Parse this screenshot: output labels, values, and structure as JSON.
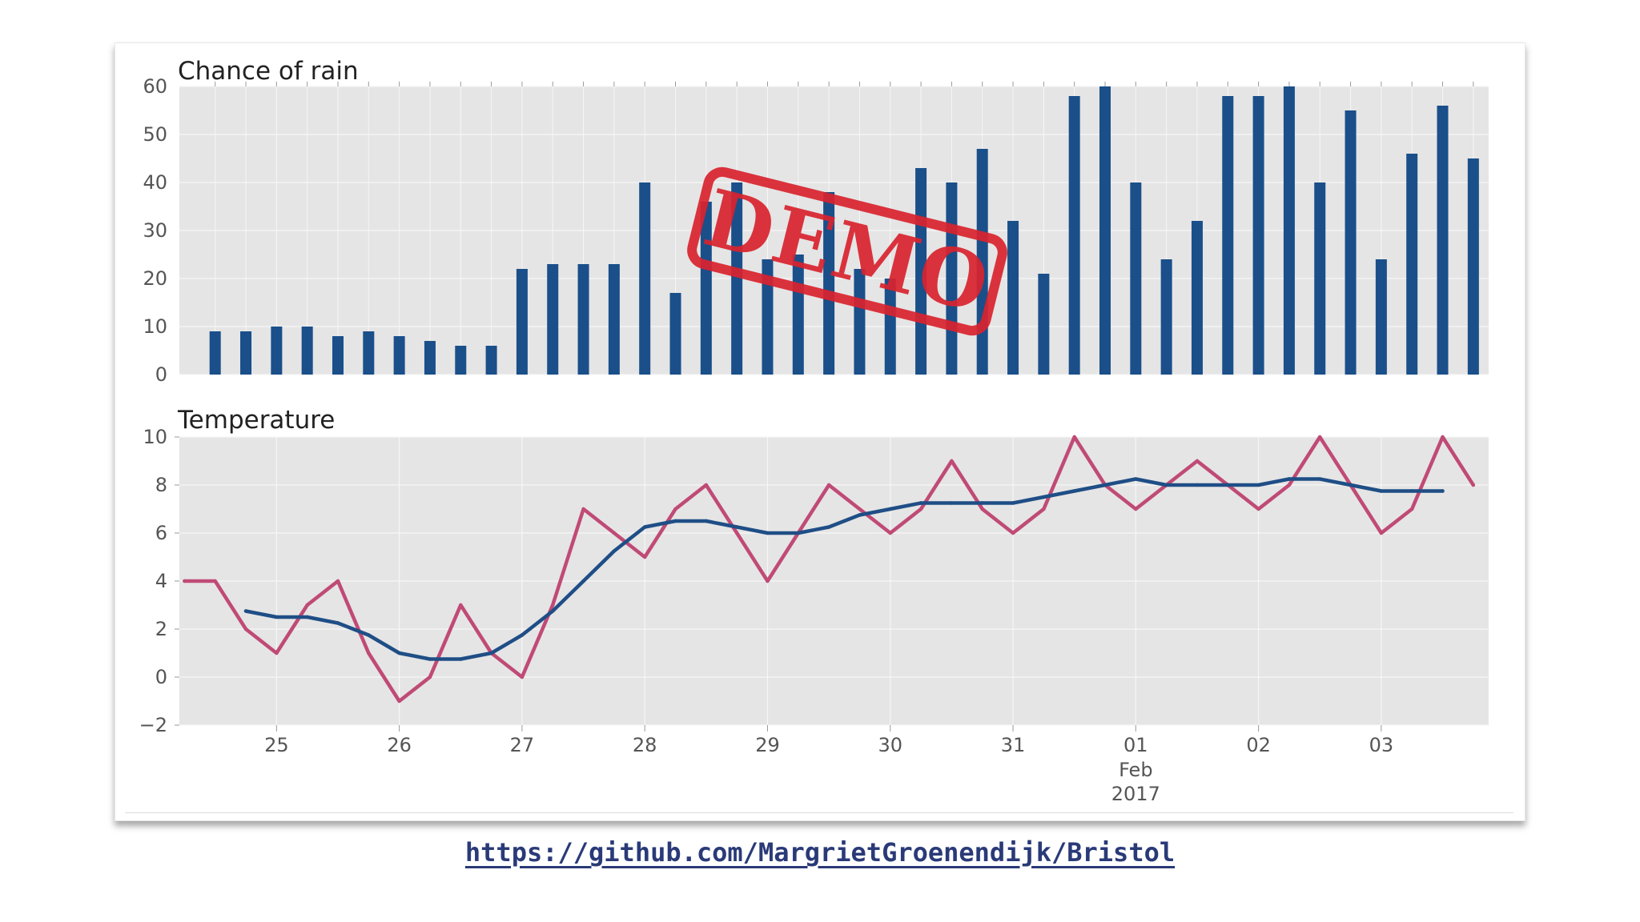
{
  "colors": {
    "bar": "#1a4f8a",
    "temperature_line": "#c04a76",
    "rolling_line": "#1f4e86",
    "panel_bg": "#e5e5e5",
    "grid": "#f6f6f6",
    "stamp": "#d9232e",
    "link": "#2a3a78"
  },
  "stamp": {
    "text": "DEMO"
  },
  "link": {
    "text": "https://github.com/MargrietGroenendijk/Bristol"
  },
  "chart_data": [
    {
      "type": "bar",
      "title": "Chance of rain",
      "xlabel": "",
      "ylabel": "",
      "ylim": [
        0,
        60
      ],
      "yticks": [
        0,
        10,
        20,
        30,
        40,
        50,
        60
      ],
      "grid": true,
      "legend": "none",
      "x_start": "2017-01-24 12:00",
      "x_step_hours": 6,
      "values": [
        9,
        9,
        10,
        10,
        8,
        9,
        8,
        7,
        6,
        6,
        22,
        23,
        23,
        23,
        40,
        17,
        36,
        40,
        24,
        25,
        38,
        22,
        20,
        43,
        40,
        47,
        32,
        21,
        58,
        60,
        40,
        24,
        32,
        58,
        58,
        60,
        40,
        55,
        24,
        46,
        56,
        45
      ]
    },
    {
      "type": "line",
      "title": "Temperature",
      "xlabel": "",
      "ylabel": "",
      "ylim": [
        -2,
        10
      ],
      "yticks": [
        -2,
        0,
        2,
        4,
        6,
        8,
        10
      ],
      "yticklabels": [
        "−2",
        "0",
        "2",
        "4",
        "6",
        "8",
        "10"
      ],
      "xticklabels": [
        "25",
        "26",
        "27",
        "28",
        "29",
        "30",
        "31",
        "01",
        "02",
        "03"
      ],
      "xtick_extra": [
        "Feb",
        "2017"
      ],
      "grid": true,
      "legend": "none",
      "x": [
        "2017-01-24 06:00",
        "2017-01-24 12:00",
        "2017-01-24 18:00",
        "2017-01-25 00:00",
        "2017-01-25 06:00",
        "2017-01-25 12:00",
        "2017-01-25 18:00",
        "2017-01-26 00:00",
        "2017-01-26 06:00",
        "2017-01-26 12:00",
        "2017-01-26 18:00",
        "2017-01-27 00:00",
        "2017-01-27 06:00",
        "2017-01-27 12:00",
        "2017-01-27 18:00",
        "2017-01-28 00:00",
        "2017-01-28 06:00",
        "2017-01-28 12:00",
        "2017-01-28 18:00",
        "2017-01-29 00:00",
        "2017-01-29 06:00",
        "2017-01-29 12:00",
        "2017-01-29 18:00",
        "2017-01-30 00:00",
        "2017-01-30 06:00",
        "2017-01-30 12:00",
        "2017-01-30 18:00",
        "2017-01-31 00:00",
        "2017-01-31 06:00",
        "2017-01-31 12:00",
        "2017-01-31 18:00",
        "2017-02-01 00:00",
        "2017-02-01 06:00",
        "2017-02-01 12:00",
        "2017-02-01 18:00",
        "2017-02-02 00:00",
        "2017-02-02 06:00",
        "2017-02-02 12:00",
        "2017-02-02 18:00",
        "2017-02-03 00:00",
        "2017-02-03 06:00",
        "2017-02-03 12:00",
        "2017-02-03 18:00"
      ],
      "series": [
        {
          "values": [
            4,
            4,
            2,
            1,
            3,
            4,
            1,
            -1,
            0,
            3,
            1,
            0,
            3,
            7,
            6,
            5,
            7,
            8,
            6,
            4,
            6,
            8,
            7,
            6,
            7,
            9,
            7,
            6,
            7,
            10,
            8,
            7,
            8,
            9,
            8,
            7,
            8,
            10,
            8,
            6,
            7,
            10,
            8
          ]
        },
        {
          "values": [
            null,
            null,
            2.75,
            2.5,
            2.5,
            2.25,
            1.75,
            1.0,
            0.75,
            0.75,
            1.0,
            1.75,
            2.75,
            4.0,
            5.25,
            6.25,
            6.5,
            6.5,
            6.25,
            6.0,
            6.0,
            6.25,
            6.75,
            7.0,
            7.25,
            7.25,
            7.25,
            7.25,
            7.5,
            7.75,
            8.0,
            8.25,
            8.0,
            8.0,
            8.0,
            8.0,
            8.25,
            8.25,
            8.0,
            7.75,
            7.75,
            7.75,
            null
          ]
        }
      ]
    }
  ]
}
